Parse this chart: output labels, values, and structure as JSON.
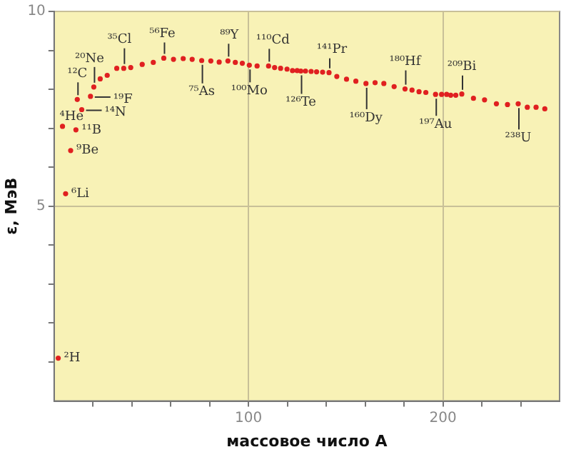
{
  "chart_data": {
    "type": "scatter",
    "xlabel": "массовое число А",
    "ylabel": "ε, МэВ",
    "x": [
      2.1,
      4.3,
      5.9,
      8.5,
      11.2,
      11.9,
      14.2,
      18.7,
      20.4,
      23.7,
      27.3,
      32.2,
      35.8,
      39.4,
      45.3,
      51,
      56.4,
      61.4,
      66.4,
      71,
      75.9,
      80.6,
      84.9,
      89.4,
      93.2,
      96.8,
      100.4,
      104.4,
      110.3,
      113.4,
      116.5,
      119.8,
      122.6,
      125,
      126.9,
      129.3,
      132.2,
      135,
      138.1,
      141.4,
      145.4,
      150.4,
      155.2,
      160.4,
      165.1,
      169.6,
      174.9,
      180.5,
      184.1,
      187.7,
      191.2,
      196.2,
      199.3,
      201.9,
      204,
      206.6,
      209.7,
      215.7,
      221.4,
      227.5,
      233.2,
      238.7,
      243.4,
      247.9,
      252.4
    ],
    "series": [
      {
        "color": "#e02020",
        "values": [
          1.1,
          7.05,
          5.32,
          6.43,
          6.96,
          7.74,
          7.48,
          7.82,
          8.06,
          8.27,
          8.36,
          8.54,
          8.54,
          8.56,
          8.64,
          8.69,
          8.8,
          8.77,
          8.79,
          8.77,
          8.74,
          8.73,
          8.7,
          8.73,
          8.69,
          8.67,
          8.62,
          8.6,
          8.6,
          8.56,
          8.54,
          8.52,
          8.48,
          8.48,
          8.47,
          8.47,
          8.46,
          8.45,
          8.44,
          8.43,
          8.33,
          8.26,
          8.21,
          8.15,
          8.17,
          8.15,
          8.07,
          8.01,
          7.98,
          7.94,
          7.92,
          7.87,
          7.87,
          7.87,
          7.85,
          7.85,
          7.88,
          7.77,
          7.73,
          7.63,
          7.61,
          7.63,
          7.54,
          7.54,
          7.5
        ]
      }
    ],
    "xlim": [
      0,
      260
    ],
    "ylim": [
      0,
      10
    ],
    "xticks": [
      {
        "value": 20,
        "label": null
      },
      {
        "value": 40,
        "label": null
      },
      {
        "value": 60,
        "label": null
      },
      {
        "value": 80,
        "label": null
      },
      100,
      {
        "value": 120,
        "label": null
      },
      {
        "value": 140,
        "label": null
      },
      {
        "value": 160,
        "label": null
      },
      {
        "value": 180,
        "label": null
      },
      200,
      {
        "value": 220,
        "label": null
      },
      {
        "value": 240,
        "label": null
      }
    ],
    "yticks": [
      {
        "value": 1,
        "label": null
      },
      {
        "value": 2,
        "label": null
      },
      {
        "value": 3,
        "label": null
      },
      {
        "value": 4,
        "label": null
      },
      5,
      {
        "value": 6,
        "label": null
      },
      {
        "value": 7,
        "label": null
      },
      {
        "value": 8,
        "label": null
      },
      {
        "value": 9,
        "label": null
      },
      10
    ],
    "grid": true,
    "marker": "circle",
    "legend": false,
    "annotations": [
      {
        "text": "²H",
        "x": 2.1,
        "y": 1.1
      },
      {
        "text": "⁴He",
        "x": 4.3,
        "y": 7.05
      },
      {
        "text": "⁶Li",
        "x": 5.9,
        "y": 5.32
      },
      {
        "text": "⁹Be",
        "x": 8.5,
        "y": 6.43
      },
      {
        "text": "¹¹B",
        "x": 11.2,
        "y": 6.96
      },
      {
        "text": "¹²C",
        "x": 11.9,
        "y": 7.74
      },
      {
        "text": "¹⁴N",
        "x": 14.2,
        "y": 7.48
      },
      {
        "text": "¹⁹F",
        "x": 18.7,
        "y": 7.82
      },
      {
        "text": "²⁰Ne",
        "x": 20.4,
        "y": 8.06
      },
      {
        "text": "³⁵Cl",
        "x": 35.8,
        "y": 8.54
      },
      {
        "text": "⁵⁶Fe",
        "x": 56.4,
        "y": 8.8
      },
      {
        "text": "⁷⁵As",
        "x": 75.9,
        "y": 8.74
      },
      {
        "text": "⁸⁹Y",
        "x": 89.4,
        "y": 8.73
      },
      {
        "text": "¹⁰⁰Mo",
        "x": 100.4,
        "y": 8.62
      },
      {
        "text": "¹¹⁰Cd",
        "x": 110.3,
        "y": 8.6
      },
      {
        "text": "¹²⁶Te",
        "x": 126.9,
        "y": 8.47
      },
      {
        "text": "¹⁴¹Pr",
        "x": 141.4,
        "y": 8.43
      },
      {
        "text": "¹⁶⁰Dy",
        "x": 160.4,
        "y": 8.15
      },
      {
        "text": "¹⁸⁰Hf",
        "x": 180.5,
        "y": 8.01
      },
      {
        "text": "¹⁹⁷Au",
        "x": 196.2,
        "y": 7.87
      },
      {
        "text": "²⁰⁹Bi",
        "x": 209.7,
        "y": 7.88
      },
      {
        "text": "²³⁸U",
        "x": 238.7,
        "y": 7.63
      }
    ]
  }
}
